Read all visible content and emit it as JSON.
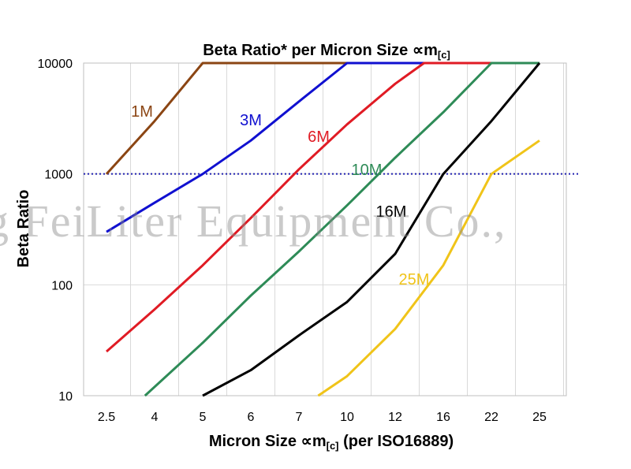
{
  "chart_data": {
    "type": "line",
    "title": "Beta Ratio* per Micron Size",
    "title_unit": "∝m",
    "title_unit_sub": "[c]",
    "xlabel": "Micron Size",
    "xlabel_unit": "∝m",
    "xlabel_unit_sub": "[c]",
    "xlabel_suffix": " (per ISO16889)",
    "ylabel": "Beta Ratio",
    "yscale": "log",
    "ylim": [
      10,
      10000
    ],
    "y_ticks": [
      10,
      100,
      1000,
      10000
    ],
    "y_tick_labels": [
      "10",
      "100",
      "1000",
      "10000"
    ],
    "categories": [
      "2.5",
      "4",
      "5",
      "6",
      "7",
      "10",
      "12",
      "16",
      "22",
      "25"
    ],
    "reference_line": {
      "y": 1000,
      "style": "dotted",
      "color": "#2020b0"
    },
    "series": [
      {
        "name": "1M",
        "color": "#8B4513",
        "points": [
          [
            0,
            1000
          ],
          [
            1,
            3000
          ],
          [
            2,
            10000
          ],
          [
            9,
            10000
          ]
        ]
      },
      {
        "name": "3M",
        "color": "#1010d0",
        "points": [
          [
            0,
            300
          ],
          [
            1,
            550
          ],
          [
            2,
            1000
          ],
          [
            3,
            2000
          ],
          [
            4,
            4500
          ],
          [
            5,
            10000
          ],
          [
            9,
            10000
          ]
        ]
      },
      {
        "name": "6M",
        "color": "#e01b24",
        "points": [
          [
            0,
            25
          ],
          [
            1,
            60
          ],
          [
            2,
            150
          ],
          [
            3,
            400
          ],
          [
            4,
            1100
          ],
          [
            5,
            2800
          ],
          [
            6,
            6500
          ],
          [
            6.6,
            10000
          ],
          [
            9,
            10000
          ]
        ]
      },
      {
        "name": "10M",
        "color": "#2e8b57",
        "points": [
          [
            0.8,
            10
          ],
          [
            2,
            30
          ],
          [
            3,
            80
          ],
          [
            4,
            200
          ],
          [
            5,
            520
          ],
          [
            6,
            1400
          ],
          [
            7,
            3600
          ],
          [
            8,
            10000
          ],
          [
            9,
            10000
          ]
        ]
      },
      {
        "name": "16M",
        "color": "#000000",
        "points": [
          [
            2,
            10
          ],
          [
            3,
            17
          ],
          [
            4,
            35
          ],
          [
            5,
            70
          ],
          [
            6,
            190
          ],
          [
            7,
            1000
          ],
          [
            8,
            3000
          ],
          [
            9,
            10000
          ]
        ]
      },
      {
        "name": "25M",
        "color": "#f0c419",
        "points": [
          [
            4.4,
            10
          ],
          [
            5,
            15
          ],
          [
            6,
            40
          ],
          [
            7,
            150
          ],
          [
            8,
            1000
          ],
          [
            9,
            2000
          ]
        ]
      }
    ],
    "series_labels": [
      {
        "name": "1M"
      },
      {
        "name": "3M"
      },
      {
        "name": "6M"
      },
      {
        "name": "10M"
      },
      {
        "name": "16M"
      },
      {
        "name": "25M"
      }
    ],
    "grid": true
  },
  "watermark_text": "g FeiLiter Equipment Co.,"
}
